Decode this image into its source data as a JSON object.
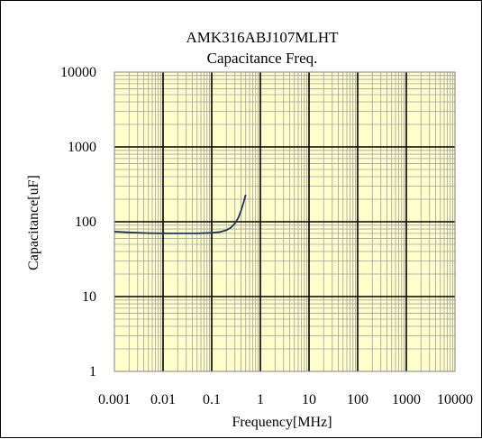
{
  "chart_data": {
    "type": "line",
    "title": "AMK316ABJ107MLHT",
    "subtitle": "Capacitance Freq.",
    "xlabel": "Frequency[MHz]",
    "ylabel": "Capacitance[uF]",
    "x_scale": "log",
    "y_scale": "log",
    "xlim": [
      0.001,
      10000
    ],
    "ylim": [
      1,
      10000
    ],
    "x_ticks": [
      "0.001",
      "0.01",
      "0.1",
      "1",
      "10",
      "100",
      "1000",
      "10000"
    ],
    "y_ticks": [
      "1",
      "10",
      "100",
      "1000",
      "10000"
    ],
    "grid": true,
    "legend": "none",
    "plot_background": "#ffffcc",
    "grid_color": "#a0a0a0",
    "series": [
      {
        "color": "#17375e",
        "x": [
          0.001,
          0.002,
          0.005,
          0.01,
          0.02,
          0.05,
          0.1,
          0.15,
          0.2,
          0.25,
          0.3,
          0.35,
          0.4,
          0.45,
          0.5
        ],
        "y": [
          74,
          72,
          70.5,
          70,
          70,
          70,
          71,
          73,
          77,
          84,
          95,
          112,
          140,
          180,
          230
        ]
      }
    ]
  }
}
